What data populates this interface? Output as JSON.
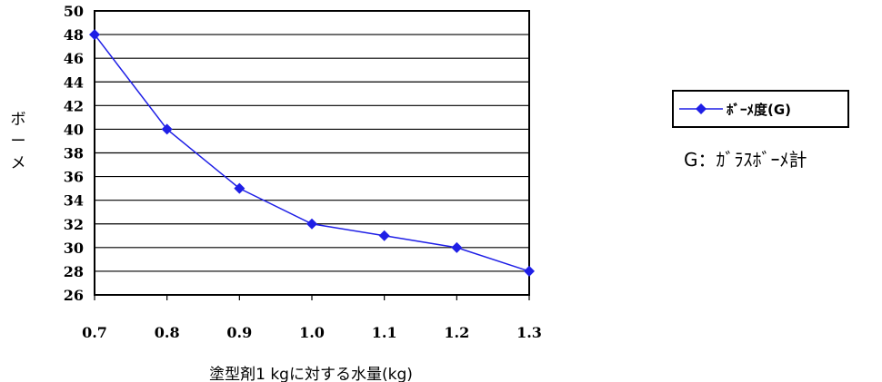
{
  "chart_data": {
    "type": "line",
    "x": [
      0.7,
      0.8,
      0.9,
      1.0,
      1.1,
      1.2,
      1.3
    ],
    "x_tick_labels": [
      "0.7",
      "0.8",
      "0.9",
      "1.0",
      "1.1",
      "1.2",
      "1.3"
    ],
    "series": [
      {
        "name": "ﾎﾞｰﾒ度(G)",
        "values": [
          48,
          40,
          35,
          32,
          31,
          30,
          28
        ],
        "color": "#1f1fe6",
        "marker": "diamond"
      }
    ],
    "ylim": [
      26,
      50
    ],
    "y_ticks": [
      26,
      28,
      30,
      32,
      34,
      36,
      38,
      40,
      42,
      44,
      46,
      48,
      50
    ],
    "xlabel": "塗型剤1 kgに対する水量(kg)",
    "ylabel": "ボーメ",
    "grid": true,
    "legend": "right",
    "annotation": "G：ｶﾞﾗｽﾎﾞｰﾒ計"
  }
}
